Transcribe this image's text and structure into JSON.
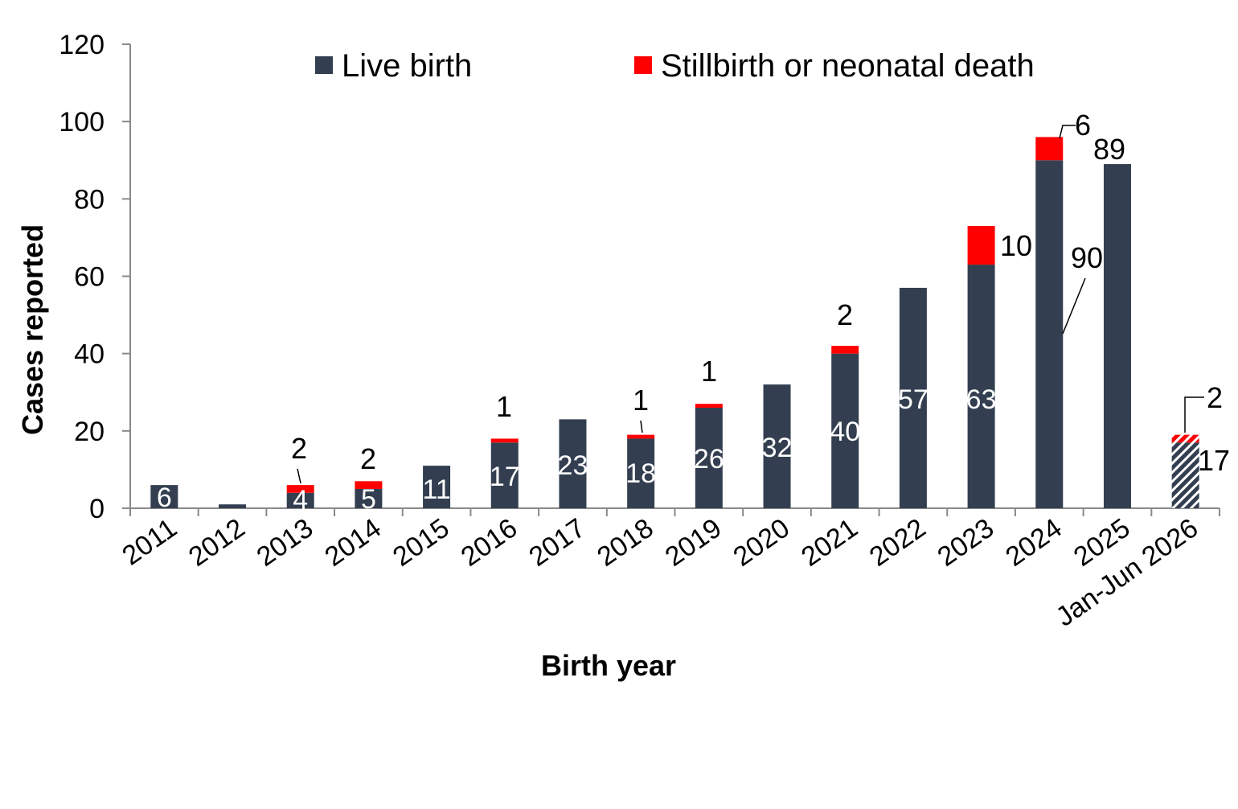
{
  "chart_data": {
    "type": "bar",
    "stacked": true,
    "title": "",
    "xlabel": "Birth year",
    "ylabel": "Cases reported",
    "ylim": [
      0,
      120
    ],
    "yticks": [
      "0",
      "20",
      "40",
      "60",
      "80",
      "100",
      "120"
    ],
    "grid": false,
    "legend_position": "top",
    "categories": [
      "2011",
      "2012",
      "2013",
      "2014",
      "2015",
      "2016",
      "2017",
      "2018",
      "2019",
      "2020",
      "2021",
      "2022",
      "2023",
      "2024",
      "2025",
      "Jan-Jun 2026"
    ],
    "series": [
      {
        "name": "Live birth",
        "color": "#333f50",
        "values": [
          6,
          1,
          4,
          5,
          11,
          17,
          23,
          18,
          26,
          32,
          40,
          57,
          63,
          90,
          89,
          17
        ],
        "labels": [
          "6",
          "",
          "4",
          "5",
          "11",
          "17",
          "23",
          "18",
          "26",
          "32",
          "40",
          "57",
          "63",
          "90",
          "89",
          "17"
        ]
      },
      {
        "name": "Stillbirth or neonatal death",
        "color": "#ff0000",
        "values": [
          0,
          0,
          2,
          2,
          0,
          1,
          0,
          1,
          1,
          0,
          2,
          0,
          10,
          6,
          0,
          2
        ],
        "labels": [
          "",
          "",
          "2",
          "2",
          "",
          "1",
          "",
          "1",
          "1",
          "",
          "2",
          "",
          "10",
          "6",
          "",
          "2"
        ]
      }
    ],
    "hatched_category": "Jan-Jun 2026"
  }
}
